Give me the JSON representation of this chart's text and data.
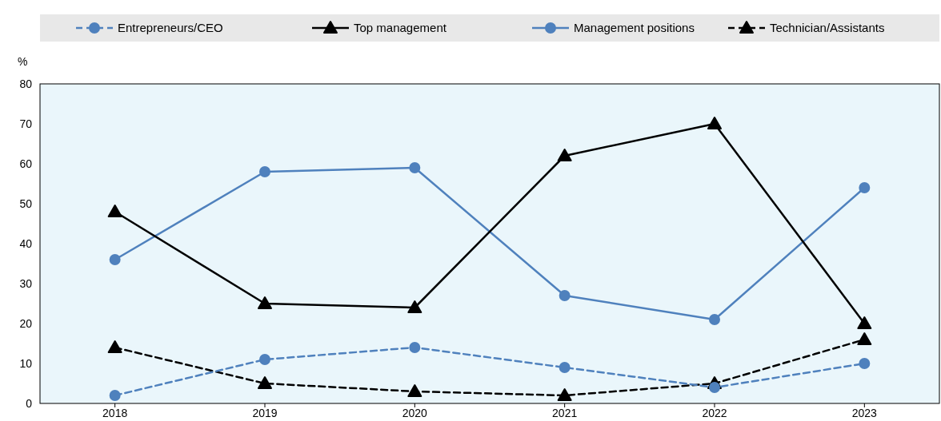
{
  "chart_data": {
    "type": "line",
    "ylabel": "%",
    "categories": [
      "2018",
      "2019",
      "2020",
      "2021",
      "2022",
      "2023"
    ],
    "ylim": [
      0,
      80
    ],
    "yticks": [
      0,
      10,
      20,
      30,
      40,
      50,
      60,
      70,
      80
    ],
    "grid": false,
    "legend": "top",
    "series": [
      {
        "name": "Entrepreneurs/CEO",
        "color": "#4f81bd",
        "values": [
          2,
          11,
          14,
          9,
          4,
          10
        ],
        "marker": "circle",
        "line_style": "dashed"
      },
      {
        "name": "Top management",
        "color": "#000000",
        "values": [
          48,
          25,
          24,
          62,
          70,
          20
        ],
        "marker": "triangle",
        "line_style": "solid"
      },
      {
        "name": "Management positions",
        "color": "#4f81bd",
        "values": [
          36,
          58,
          59,
          27,
          21,
          54
        ],
        "marker": "circle",
        "line_style": "solid"
      },
      {
        "name": "Technician/Assistants",
        "color": "#000000",
        "values": [
          14,
          5,
          3,
          2,
          5,
          16
        ],
        "marker": "triangle",
        "line_style": "dashed"
      }
    ]
  }
}
